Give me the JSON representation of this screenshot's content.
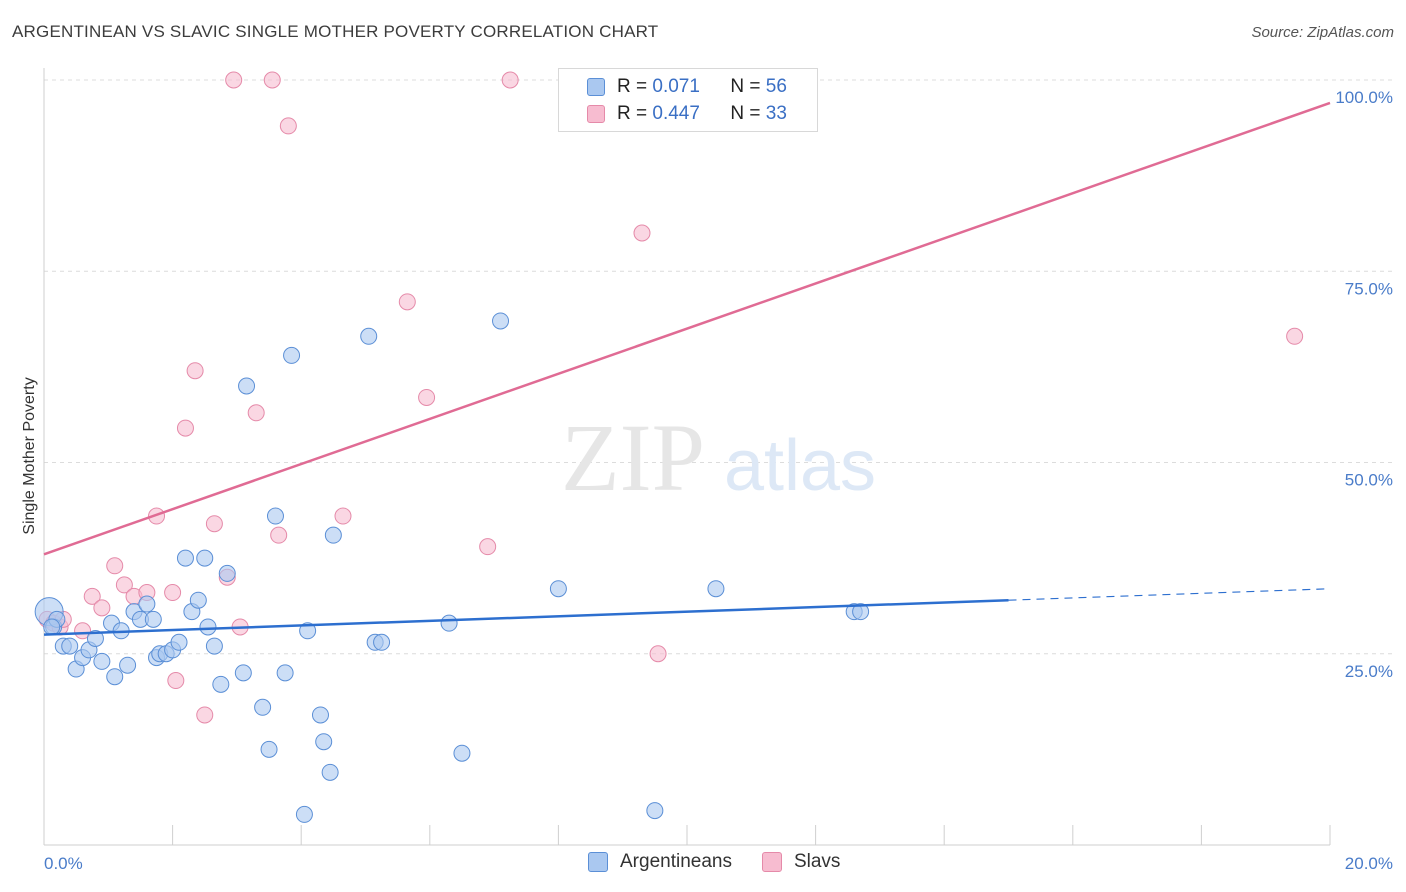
{
  "title": "ARGENTINEAN VS SLAVIC SINGLE MOTHER POVERTY CORRELATION CHART",
  "source": "Source: ZipAtlas.com",
  "watermark": {
    "zip": "ZIP",
    "atlas": "atlas"
  },
  "legend": {
    "rows": [
      {
        "r_label": "R = ",
        "r_value": "0.071",
        "n_label": "N = ",
        "n_value": "56"
      },
      {
        "r_label": "R = ",
        "r_value": "0.447",
        "n_label": "N = ",
        "n_value": "33"
      }
    ]
  },
  "colors": {
    "argentineans_fill": "#aac8f0",
    "argentineans_stroke": "#5b8fd6",
    "argentineans_line": "#2d6fcf",
    "slavs_fill": "#f7bcd0",
    "slavs_stroke": "#e58aa9",
    "slavs_line": "#e06b94",
    "tick_text": "#4a7cc9",
    "grid": "#dcdcdc"
  },
  "chart_data": {
    "type": "scatter",
    "title": "ARGENTINEAN VS SLAVIC SINGLE MOTHER POVERTY CORRELATION CHART",
    "xlabel": "",
    "ylabel": "Single Mother Poverty",
    "xlim": [
      0,
      20
    ],
    "ylim": [
      0,
      100
    ],
    "x_tick_labels": [
      "0.0%",
      "20.0%"
    ],
    "y_tick_labels": [
      "25.0%",
      "50.0%",
      "75.0%",
      "100.0%"
    ],
    "y_ticks": [
      25,
      50,
      75,
      100
    ],
    "grid": true,
    "legend_position": "bottom",
    "series": [
      {
        "name": "Argentineans",
        "points": [
          [
            0.08,
            30.5
          ],
          [
            0.15,
            28.5
          ],
          [
            0.2,
            29.5
          ],
          [
            0.3,
            26
          ],
          [
            0.4,
            26
          ],
          [
            0.5,
            23
          ],
          [
            0.6,
            24.5
          ],
          [
            0.7,
            25.5
          ],
          [
            0.8,
            27
          ],
          [
            0.9,
            24
          ],
          [
            1.05,
            29
          ],
          [
            1.1,
            22
          ],
          [
            1.2,
            28
          ],
          [
            1.3,
            23.5
          ],
          [
            1.4,
            30.5
          ],
          [
            1.5,
            29.5
          ],
          [
            1.6,
            31.5
          ],
          [
            1.7,
            29.5
          ],
          [
            1.75,
            24.5
          ],
          [
            1.8,
            25
          ],
          [
            1.9,
            25
          ],
          [
            2.0,
            25.5
          ],
          [
            2.1,
            26.5
          ],
          [
            2.2,
            37.5
          ],
          [
            2.3,
            30.5
          ],
          [
            2.4,
            32
          ],
          [
            2.5,
            37.5
          ],
          [
            2.55,
            28.5
          ],
          [
            2.65,
            26
          ],
          [
            2.75,
            21
          ],
          [
            2.85,
            35.5
          ],
          [
            3.1,
            22.5
          ],
          [
            3.15,
            60
          ],
          [
            3.4,
            18
          ],
          [
            3.5,
            12.5
          ],
          [
            3.6,
            43
          ],
          [
            3.75,
            22.5
          ],
          [
            3.85,
            64
          ],
          [
            4.05,
            4
          ],
          [
            4.1,
            28
          ],
          [
            4.3,
            17
          ],
          [
            4.35,
            13.5
          ],
          [
            4.45,
            9.5
          ],
          [
            4.5,
            40.5
          ],
          [
            5.05,
            66.5
          ],
          [
            5.15,
            26.5
          ],
          [
            5.25,
            26.5
          ],
          [
            6.3,
            29
          ],
          [
            6.5,
            12
          ],
          [
            7.1,
            68.5
          ],
          [
            8.0,
            33.5
          ],
          [
            9.5,
            4.5
          ],
          [
            10.45,
            33.5
          ],
          [
            12.6,
            30.5
          ],
          [
            12.7,
            30.5
          ],
          [
            0.12,
            28.5
          ]
        ]
      },
      {
        "name": "Slavs",
        "points": [
          [
            0.05,
            29.5
          ],
          [
            0.15,
            29
          ],
          [
            0.25,
            28.5
          ],
          [
            0.3,
            29.5
          ],
          [
            0.6,
            28
          ],
          [
            0.75,
            32.5
          ],
          [
            0.9,
            31
          ],
          [
            1.1,
            36.5
          ],
          [
            1.25,
            34
          ],
          [
            1.4,
            32.5
          ],
          [
            1.6,
            33
          ],
          [
            1.75,
            43
          ],
          [
            2.0,
            33
          ],
          [
            2.05,
            21.5
          ],
          [
            2.2,
            54.5
          ],
          [
            2.35,
            62
          ],
          [
            2.5,
            17
          ],
          [
            2.65,
            42
          ],
          [
            2.85,
            35
          ],
          [
            2.95,
            100
          ],
          [
            3.05,
            28.5
          ],
          [
            3.3,
            56.5
          ],
          [
            3.55,
            100
          ],
          [
            3.65,
            40.5
          ],
          [
            3.8,
            94
          ],
          [
            4.65,
            43
          ],
          [
            5.65,
            71
          ],
          [
            5.95,
            58.5
          ],
          [
            6.9,
            39
          ],
          [
            7.25,
            100
          ],
          [
            9.3,
            80
          ],
          [
            9.55,
            25
          ],
          [
            19.45,
            66.5
          ]
        ]
      }
    ],
    "trend_lines": [
      {
        "series": "Argentineans",
        "x": [
          0,
          15
        ],
        "y": [
          27.5,
          32
        ],
        "dashed_extension_to_x": 20,
        "dashed_extension_y": 33.5
      },
      {
        "series": "Slavs",
        "x": [
          0,
          20
        ],
        "y": [
          38,
          97
        ]
      }
    ]
  },
  "bottom_legend": [
    "Argentineans",
    "Slavs"
  ]
}
